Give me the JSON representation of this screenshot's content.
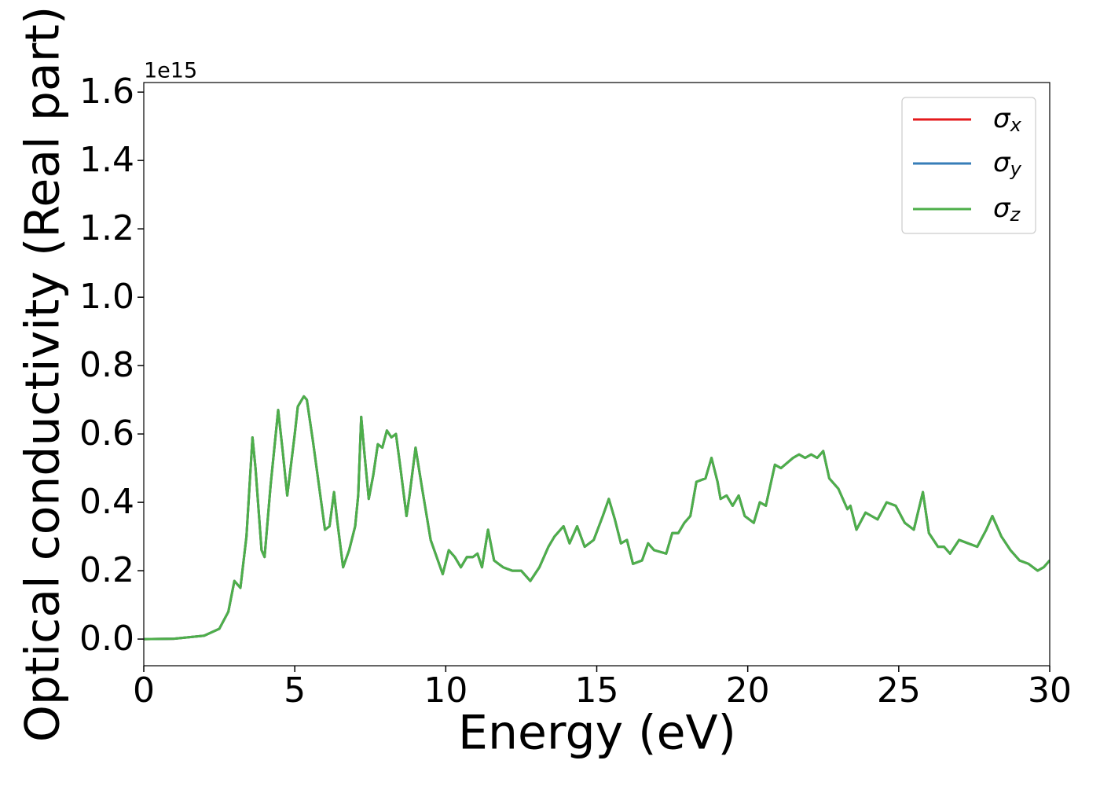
{
  "chart_data": {
    "type": "line",
    "xlabel": "Energy (eV)",
    "ylabel": "Optical conductivity (Real part)",
    "offset_label": "1e15",
    "x": [
      0,
      1,
      2,
      2.5,
      2.8,
      3.0,
      3.2,
      3.4,
      3.6,
      3.7,
      3.9,
      4.0,
      4.2,
      4.45,
      4.6,
      4.75,
      5.0,
      5.1,
      5.3,
      5.4,
      5.6,
      5.8,
      6.0,
      6.15,
      6.3,
      6.4,
      6.6,
      6.8,
      7.0,
      7.1,
      7.2,
      7.3,
      7.45,
      7.6,
      7.75,
      7.9,
      8.05,
      8.2,
      8.35,
      8.5,
      8.7,
      8.8,
      9.0,
      9.2,
      9.5,
      9.7,
      9.9,
      10.1,
      10.3,
      10.5,
      10.7,
      10.9,
      11.05,
      11.2,
      11.4,
      11.6,
      11.9,
      12.2,
      12.5,
      12.8,
      13.1,
      13.4,
      13.6,
      13.9,
      14.1,
      14.35,
      14.6,
      14.9,
      15.2,
      15.4,
      15.6,
      15.8,
      16.0,
      16.2,
      16.5,
      16.7,
      16.9,
      17.3,
      17.5,
      17.7,
      17.9,
      18.1,
      18.3,
      18.6,
      18.8,
      19.0,
      19.1,
      19.3,
      19.5,
      19.7,
      19.9,
      20.2,
      20.4,
      20.6,
      20.9,
      21.1,
      21.5,
      21.7,
      21.9,
      22.1,
      22.3,
      22.5,
      22.7,
      23.0,
      23.3,
      23.4,
      23.6,
      23.9,
      24.1,
      24.3,
      24.6,
      24.9,
      25.2,
      25.5,
      25.8,
      26.0,
      26.3,
      26.5,
      26.7,
      27.0,
      27.3,
      27.6,
      27.9,
      28.1,
      28.4,
      28.7,
      29.0,
      29.3,
      29.6,
      29.8,
      30
    ],
    "series": [
      {
        "name": "σx",
        "color": "#e41a1c",
        "values": [
          0,
          0.001,
          0.01,
          0.03,
          0.08,
          0.17,
          0.15,
          0.3,
          0.59,
          0.5,
          0.26,
          0.24,
          0.45,
          0.67,
          0.55,
          0.42,
          0.6,
          0.68,
          0.71,
          0.7,
          0.58,
          0.45,
          0.32,
          0.33,
          0.43,
          0.35,
          0.21,
          0.26,
          0.33,
          0.42,
          0.65,
          0.55,
          0.41,
          0.48,
          0.57,
          0.56,
          0.61,
          0.59,
          0.6,
          0.5,
          0.36,
          0.42,
          0.56,
          0.45,
          0.29,
          0.24,
          0.19,
          0.26,
          0.24,
          0.21,
          0.24,
          0.24,
          0.25,
          0.21,
          0.32,
          0.23,
          0.21,
          0.2,
          0.2,
          0.17,
          0.21,
          0.27,
          0.3,
          0.33,
          0.28,
          0.33,
          0.27,
          0.29,
          0.36,
          0.41,
          0.35,
          0.28,
          0.29,
          0.22,
          0.23,
          0.28,
          0.26,
          0.25,
          0.31,
          0.31,
          0.34,
          0.36,
          0.46,
          0.47,
          0.53,
          0.46,
          0.41,
          0.42,
          0.39,
          0.42,
          0.36,
          0.34,
          0.4,
          0.39,
          0.51,
          0.5,
          0.53,
          0.54,
          0.53,
          0.54,
          0.53,
          0.55,
          0.47,
          0.44,
          0.38,
          0.39,
          0.32,
          0.37,
          0.36,
          0.35,
          0.4,
          0.39,
          0.34,
          0.32,
          0.43,
          0.31,
          0.27,
          0.27,
          0.25,
          0.29,
          0.28,
          0.27,
          0.32,
          0.36,
          0.3,
          0.26,
          0.23,
          0.22,
          0.2,
          0.21,
          0.23
        ]
      },
      {
        "name": "σy",
        "color": "#377eb8",
        "values": [
          0,
          0.001,
          0.01,
          0.03,
          0.08,
          0.17,
          0.15,
          0.3,
          0.59,
          0.5,
          0.26,
          0.24,
          0.45,
          0.67,
          0.55,
          0.42,
          0.6,
          0.68,
          0.71,
          0.7,
          0.58,
          0.45,
          0.32,
          0.33,
          0.43,
          0.35,
          0.21,
          0.26,
          0.33,
          0.42,
          0.65,
          0.55,
          0.41,
          0.48,
          0.57,
          0.56,
          0.61,
          0.59,
          0.6,
          0.5,
          0.36,
          0.42,
          0.56,
          0.45,
          0.29,
          0.24,
          0.19,
          0.26,
          0.24,
          0.21,
          0.24,
          0.24,
          0.25,
          0.21,
          0.32,
          0.23,
          0.21,
          0.2,
          0.2,
          0.17,
          0.21,
          0.27,
          0.3,
          0.33,
          0.28,
          0.33,
          0.27,
          0.29,
          0.36,
          0.41,
          0.35,
          0.28,
          0.29,
          0.22,
          0.23,
          0.28,
          0.26,
          0.25,
          0.31,
          0.31,
          0.34,
          0.36,
          0.46,
          0.47,
          0.53,
          0.46,
          0.41,
          0.42,
          0.39,
          0.42,
          0.36,
          0.34,
          0.4,
          0.39,
          0.51,
          0.5,
          0.53,
          0.54,
          0.53,
          0.54,
          0.53,
          0.55,
          0.47,
          0.44,
          0.38,
          0.39,
          0.32,
          0.37,
          0.36,
          0.35,
          0.4,
          0.39,
          0.34,
          0.32,
          0.43,
          0.31,
          0.27,
          0.27,
          0.25,
          0.29,
          0.28,
          0.27,
          0.32,
          0.36,
          0.3,
          0.26,
          0.23,
          0.22,
          0.2,
          0.21,
          0.23
        ]
      },
      {
        "name": "σz",
        "color": "#4daf4a",
        "values": [
          0,
          0.001,
          0.01,
          0.03,
          0.08,
          0.17,
          0.15,
          0.3,
          0.59,
          0.5,
          0.26,
          0.24,
          0.45,
          0.67,
          0.55,
          0.42,
          0.6,
          0.68,
          0.71,
          0.7,
          0.58,
          0.45,
          0.32,
          0.33,
          0.43,
          0.35,
          0.21,
          0.26,
          0.33,
          0.42,
          0.65,
          0.55,
          0.41,
          0.48,
          0.57,
          0.56,
          0.61,
          0.59,
          0.6,
          0.5,
          0.36,
          0.42,
          0.56,
          0.45,
          0.29,
          0.24,
          0.19,
          0.26,
          0.24,
          0.21,
          0.24,
          0.24,
          0.25,
          0.21,
          0.32,
          0.23,
          0.21,
          0.2,
          0.2,
          0.17,
          0.21,
          0.27,
          0.3,
          0.33,
          0.28,
          0.33,
          0.27,
          0.29,
          0.36,
          0.41,
          0.35,
          0.28,
          0.29,
          0.22,
          0.23,
          0.28,
          0.26,
          0.25,
          0.31,
          0.31,
          0.34,
          0.36,
          0.46,
          0.47,
          0.53,
          0.46,
          0.41,
          0.42,
          0.39,
          0.42,
          0.36,
          0.34,
          0.4,
          0.39,
          0.51,
          0.5,
          0.53,
          0.54,
          0.53,
          0.54,
          0.53,
          0.55,
          0.47,
          0.44,
          0.38,
          0.39,
          0.32,
          0.37,
          0.36,
          0.35,
          0.4,
          0.39,
          0.34,
          0.32,
          0.43,
          0.31,
          0.27,
          0.27,
          0.25,
          0.29,
          0.28,
          0.27,
          0.32,
          0.36,
          0.3,
          0.26,
          0.23,
          0.22,
          0.2,
          0.21,
          0.23
        ]
      }
    ],
    "xlim": [
      0,
      30
    ],
    "xticks": [
      0,
      5,
      10,
      15,
      20,
      25,
      30
    ],
    "ylim": [
      -0.078,
      1.628
    ],
    "yticks": [
      {
        "value": 0,
        "label": "0.0"
      },
      0.2,
      0.4,
      0.6,
      0.8,
      {
        "value": 1,
        "label": "1.0"
      },
      1.2,
      1.4,
      1.6
    ],
    "grid": false,
    "legend": "upper right"
  }
}
